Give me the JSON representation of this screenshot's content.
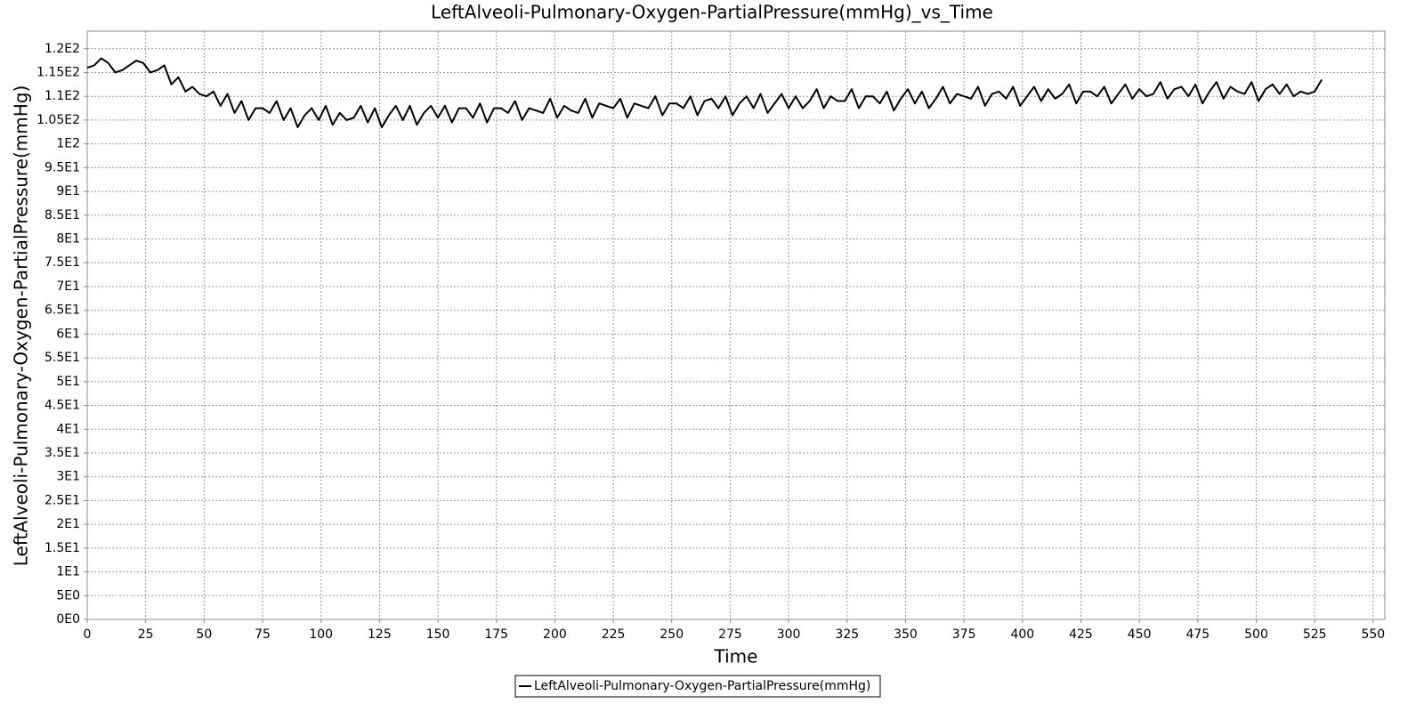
{
  "chart_data": {
    "type": "line",
    "title": "LeftAlveoli-Pulmonary-Oxygen-PartialPressure(mmHg)_vs_Time",
    "xlabel": "Time",
    "ylabel": "LeftAlveoli-Pulmonary-Oxygen-PartialPressure(mmHg)",
    "xlim": [
      0,
      555
    ],
    "ylim": [
      0,
      123.7
    ],
    "xticks": [
      0,
      25,
      50,
      75,
      100,
      125,
      150,
      175,
      200,
      225,
      250,
      275,
      300,
      325,
      350,
      375,
      400,
      425,
      450,
      475,
      500,
      525,
      550
    ],
    "yticks": [
      {
        "value": 0,
        "label": "0E0"
      },
      {
        "value": 5,
        "label": "5E0"
      },
      {
        "value": 10,
        "label": "1E1"
      },
      {
        "value": 15,
        "label": "1.5E1"
      },
      {
        "value": 20,
        "label": "2E1"
      },
      {
        "value": 25,
        "label": "2.5E1"
      },
      {
        "value": 30,
        "label": "3E1"
      },
      {
        "value": 35,
        "label": "3.5E1"
      },
      {
        "value": 40,
        "label": "4E1"
      },
      {
        "value": 45,
        "label": "4.5E1"
      },
      {
        "value": 50,
        "label": "5E1"
      },
      {
        "value": 55,
        "label": "5.5E1"
      },
      {
        "value": 60,
        "label": "6E1"
      },
      {
        "value": 65,
        "label": "6.5E1"
      },
      {
        "value": 70,
        "label": "7E1"
      },
      {
        "value": 75,
        "label": "7.5E1"
      },
      {
        "value": 80,
        "label": "8E1"
      },
      {
        "value": 85,
        "label": "8.5E1"
      },
      {
        "value": 90,
        "label": "9E1"
      },
      {
        "value": 95,
        "label": "9.5E1"
      },
      {
        "value": 100,
        "label": "1E2"
      },
      {
        "value": 105,
        "label": "1.05E2"
      },
      {
        "value": 110,
        "label": "1.1E2"
      },
      {
        "value": 115,
        "label": "1.15E2"
      },
      {
        "value": 120,
        "label": "1.2E2"
      }
    ],
    "grid": true,
    "legend": "bottom",
    "x": [
      0,
      3,
      6,
      9,
      12,
      15,
      18,
      21,
      24,
      27,
      30,
      33,
      36,
      39,
      42,
      45,
      48,
      51,
      54,
      57,
      60,
      63,
      66,
      69,
      72,
      75,
      78,
      81,
      84,
      87,
      90,
      93,
      96,
      99,
      102,
      105,
      108,
      111,
      114,
      117,
      120,
      123,
      126,
      129,
      132,
      135,
      138,
      141,
      144,
      147,
      150,
      153,
      156,
      159,
      162,
      165,
      168,
      171,
      174,
      177,
      180,
      183,
      186,
      189,
      192,
      195,
      198,
      201,
      204,
      207,
      210,
      213,
      216,
      219,
      222,
      225,
      228,
      231,
      234,
      237,
      240,
      243,
      246,
      249,
      252,
      255,
      258,
      261,
      264,
      267,
      270,
      273,
      276,
      279,
      282,
      285,
      288,
      291,
      294,
      297,
      300,
      303,
      306,
      309,
      312,
      315,
      318,
      321,
      324,
      327,
      330,
      333,
      336,
      339,
      342,
      345,
      348,
      351,
      354,
      357,
      360,
      363,
      366,
      369,
      372,
      375,
      378,
      381,
      384,
      387,
      390,
      393,
      396,
      399,
      402,
      405,
      408,
      411,
      414,
      417,
      420,
      423,
      426,
      429,
      432,
      435,
      438,
      441,
      444,
      447,
      450,
      453,
      456,
      459,
      462,
      465,
      468,
      471,
      474,
      477,
      480,
      483,
      486,
      489,
      492,
      495,
      498,
      501,
      504,
      507,
      510,
      513,
      516,
      519,
      522,
      525,
      528
    ],
    "series": [
      {
        "name": "LeftAlveoli-Pulmonary-Oxygen-PartialPressure(mmHg)",
        "color": "#000000",
        "values": [
          116,
          116.5,
          118,
          117,
          115,
          115.5,
          116.5,
          117.5,
          117,
          115,
          115.5,
          116.5,
          112.5,
          114,
          111,
          112,
          110.5,
          110,
          111,
          108,
          110.5,
          106.5,
          109,
          105,
          107.5,
          107.5,
          106.5,
          109,
          105,
          107.5,
          103.5,
          106,
          107.5,
          105,
          108,
          104,
          106.5,
          105,
          105.5,
          108,
          104.5,
          107.5,
          103.5,
          106,
          108,
          105,
          108,
          104,
          106.5,
          108,
          105.5,
          108,
          104.5,
          107.5,
          107.5,
          105.5,
          108.5,
          104.5,
          107.5,
          107.5,
          106.5,
          109,
          105,
          107.5,
          107,
          106.5,
          109.5,
          105.5,
          108,
          107,
          106.5,
          109.5,
          105.5,
          108.5,
          108,
          107.5,
          109.5,
          105.5,
          108.5,
          108,
          107.5,
          110,
          106,
          108.5,
          108.5,
          107.5,
          110,
          106,
          109,
          109.5,
          107.5,
          110,
          106,
          108.5,
          110,
          107.5,
          110.5,
          106.5,
          108.5,
          110.5,
          107.5,
          110,
          107.5,
          109,
          111.5,
          107.5,
          110,
          109,
          109,
          111.5,
          107.5,
          110,
          110,
          108.5,
          111,
          107,
          109.5,
          111.5,
          108.5,
          111,
          107.5,
          109.5,
          112,
          108.5,
          110.5,
          110,
          109.5,
          112,
          108,
          110.5,
          111,
          109.5,
          112,
          108,
          110,
          112,
          109,
          111.5,
          109.5,
          110.5,
          112.5,
          108.5,
          111,
          111,
          110,
          112,
          108.5,
          110.5,
          112.5,
          109.5,
          111.5,
          110,
          110.5,
          113,
          109.5,
          111.5,
          112,
          110,
          112.5,
          108.5,
          111,
          113,
          109.5,
          112,
          111,
          110.5,
          113,
          109,
          111.5,
          112.5,
          110.5,
          112.5,
          110,
          111,
          110.5,
          111,
          113.5
        ]
      }
    ]
  }
}
